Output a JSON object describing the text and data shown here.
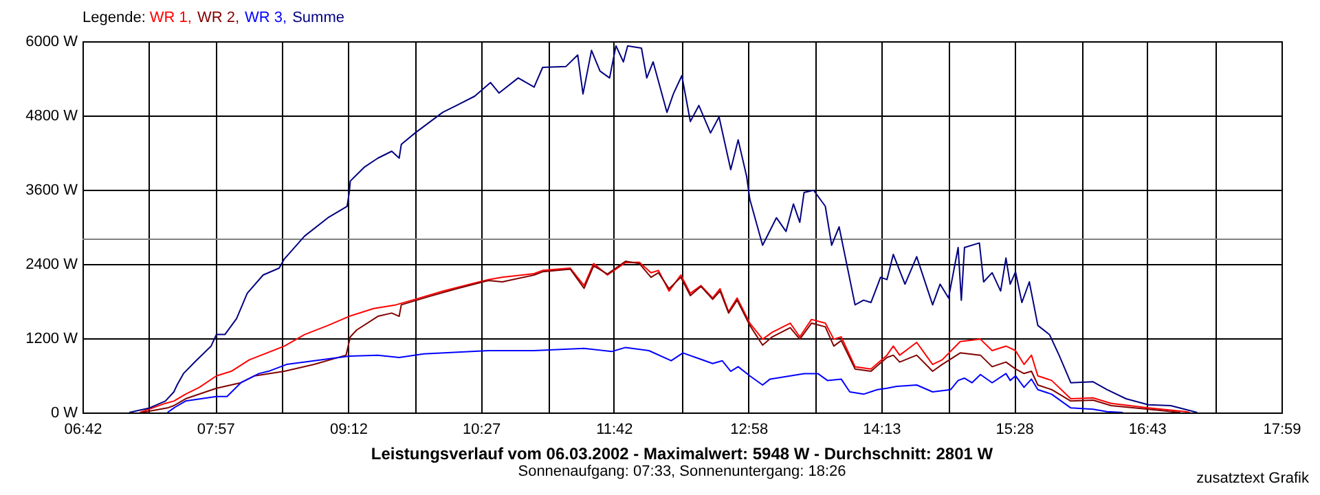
{
  "chart_data": {
    "type": "line",
    "title": "Leistungsverlauf vom 06.03.2002 - Maximalwert: 5948 W - Durchschnitt: 2801 W",
    "subtitle": "Sonnenaufgang: 07:33, Sonnenuntergang: 18:26",
    "legend_title": "Legende:",
    "annotations": [
      "zusatztext Grafik"
    ],
    "xlim": [
      6.7,
      17.983
    ],
    "xticks": [
      {
        "value": 6.7,
        "label": "06:42"
      },
      {
        "value": 7.327,
        "label": null
      },
      {
        "value": 7.95,
        "label": "07:57"
      },
      {
        "value": 8.581,
        "label": null
      },
      {
        "value": 9.2,
        "label": "09:12"
      },
      {
        "value": 9.834,
        "label": null
      },
      {
        "value": 10.45,
        "label": "10:27"
      },
      {
        "value": 11.088,
        "label": null
      },
      {
        "value": 11.7,
        "label": "11:42"
      },
      {
        "value": 12.342,
        "label": null
      },
      {
        "value": 12.967,
        "label": "12:58"
      },
      {
        "value": 13.595,
        "label": null
      },
      {
        "value": 14.217,
        "label": "14:13"
      },
      {
        "value": 14.849,
        "label": null
      },
      {
        "value": 15.467,
        "label": "15:28"
      },
      {
        "value": 16.103,
        "label": null
      },
      {
        "value": 16.717,
        "label": "16:43"
      },
      {
        "value": 17.357,
        "label": null
      },
      {
        "value": 17.983,
        "label": "17:59"
      }
    ],
    "ylim": [
      0,
      6000
    ],
    "yticks": [
      {
        "value": 0,
        "label": "0 W"
      },
      {
        "value": 1200,
        "label": "1200 W"
      },
      {
        "value": 2400,
        "label": "2400 W"
      },
      {
        "value": 3600,
        "label": "3600 W"
      },
      {
        "value": 4800,
        "label": "4800 W"
      },
      {
        "value": 6000,
        "label": "6000 W"
      }
    ],
    "grid": true,
    "legend": "top left",
    "ref_lines": [
      {
        "axis": "y",
        "value": 2801,
        "color": "#808080"
      }
    ],
    "series": [
      {
        "name": "WR 1,",
        "color": "#ff0000",
        "x": [
          7.24,
          7.48,
          7.56,
          7.67,
          7.8,
          7.96,
          8.1,
          8.27,
          8.6,
          8.79,
          9.01,
          9.21,
          9.44,
          9.65,
          9.83,
          10.09,
          10.35,
          10.52,
          10.65,
          10.95,
          11.03,
          11.29,
          11.42,
          11.51,
          11.64,
          11.81,
          11.94,
          12.05,
          12.12,
          12.22,
          12.33,
          12.42,
          12.52,
          12.63,
          12.7,
          12.78,
          12.86,
          12.98,
          13.1,
          13.19,
          13.36,
          13.45,
          13.56,
          13.69,
          13.77,
          13.84,
          13.97,
          14.12,
          14.27,
          14.33,
          14.39,
          14.55,
          14.7,
          14.79,
          14.96,
          15.15,
          15.26,
          15.39,
          15.48,
          15.56,
          15.63,
          15.69,
          15.82,
          16.0,
          16.21,
          16.38,
          16.73,
          17.08,
          17.12
        ],
        "values": [
          0,
          148,
          185,
          296,
          407,
          592,
          666,
          851,
          1073,
          1260,
          1407,
          1555,
          1681,
          1740,
          1829,
          1962,
          2074,
          2148,
          2185,
          2244,
          2296,
          2333,
          2051,
          2407,
          2222,
          2422,
          2429,
          2259,
          2296,
          1962,
          2222,
          1926,
          2051,
          1851,
          2000,
          1629,
          1851,
          1444,
          1185,
          1296,
          1444,
          1222,
          1504,
          1444,
          1185,
          1222,
          740,
          704,
          926,
          1073,
          926,
          1133,
          777,
          851,
          1148,
          1185,
          1000,
          1073,
          1000,
          777,
          926,
          592,
          518,
          222,
          237,
          148,
          74,
          15,
          0
        ]
      },
      {
        "name": "WR 2,",
        "color": "#800000",
        "x": [
          7.26,
          7.5,
          7.56,
          7.67,
          7.96,
          8.19,
          8.32,
          8.6,
          8.88,
          9.18,
          9.22,
          9.28,
          9.48,
          9.61,
          9.68,
          9.7,
          9.96,
          10.22,
          10.52,
          10.65,
          10.95,
          11.03,
          11.29,
          11.42,
          11.51,
          11.64,
          11.81,
          11.94,
          12.05,
          12.12,
          12.22,
          12.33,
          12.42,
          12.52,
          12.63,
          12.7,
          12.78,
          12.86,
          12.98,
          13.1,
          13.19,
          13.36,
          13.45,
          13.56,
          13.69,
          13.77,
          13.84,
          13.97,
          14.12,
          14.27,
          14.33,
          14.39,
          14.55,
          14.7,
          14.79,
          14.96,
          15.15,
          15.26,
          15.39,
          15.48,
          15.56,
          15.63,
          15.69,
          15.82,
          16.0,
          16.21,
          16.38,
          16.73,
          17.03
        ],
        "values": [
          0,
          74,
          111,
          222,
          392,
          481,
          592,
          666,
          777,
          926,
          1222,
          1333,
          1555,
          1607,
          1555,
          1740,
          1874,
          2000,
          2133,
          2111,
          2222,
          2274,
          2318,
          2007,
          2370,
          2237,
          2444,
          2407,
          2185,
          2259,
          2000,
          2185,
          1889,
          2037,
          1829,
          1963,
          1607,
          1815,
          1407,
          1089,
          1222,
          1370,
          1185,
          1444,
          1385,
          1074,
          1163,
          704,
          667,
          889,
          926,
          815,
          926,
          667,
          777,
          963,
          926,
          740,
          815,
          704,
          630,
          667,
          444,
          370,
          185,
          200,
          111,
          52,
          0
        ]
      },
      {
        "name": "WR 3,",
        "color": "#0000ff",
        "x": [
          7.5,
          7.56,
          7.67,
          7.96,
          8.06,
          8.19,
          8.36,
          8.45,
          8.62,
          8.88,
          9.21,
          9.48,
          9.68,
          9.91,
          10.52,
          10.95,
          11.42,
          11.68,
          11.81,
          12.03,
          12.24,
          12.35,
          12.63,
          12.72,
          12.8,
          12.87,
          12.98,
          13.1,
          13.17,
          13.36,
          13.49,
          13.62,
          13.71,
          13.84,
          13.92,
          14.05,
          14.18,
          14.27,
          14.36,
          14.55,
          14.7,
          14.87,
          14.94,
          15.0,
          15.07,
          15.15,
          15.26,
          15.39,
          15.43,
          15.48,
          15.56,
          15.63,
          15.69,
          15.82,
          16.0,
          16.21,
          16.34,
          16.49
        ],
        "values": [
          0,
          74,
          185,
          259,
          259,
          481,
          629,
          666,
          777,
          837,
          911,
          926,
          889,
          948,
          1000,
          1000,
          1037,
          985,
          1051,
          1000,
          837,
          963,
          792,
          837,
          666,
          740,
          592,
          444,
          540,
          592,
          629,
          629,
          518,
          540,
          333,
          296,
          370,
          392,
          422,
          444,
          333,
          370,
          518,
          555,
          481,
          614,
          481,
          629,
          518,
          592,
          407,
          540,
          370,
          296,
          74,
          52,
          15,
          0
        ]
      },
      {
        "name": "Summe",
        "color": "#000080",
        "x": [
          7.14,
          7.33,
          7.48,
          7.56,
          7.59,
          7.65,
          7.76,
          7.91,
          7.96,
          8.04,
          8.15,
          8.25,
          8.4,
          8.55,
          8.6,
          8.79,
          9.01,
          9.19,
          9.21,
          9.22,
          9.35,
          9.48,
          9.61,
          9.68,
          9.7,
          9.83,
          10.09,
          10.22,
          10.39,
          10.54,
          10.62,
          10.8,
          10.95,
          11.03,
          11.25,
          11.36,
          11.41,
          11.49,
          11.57,
          11.66,
          11.72,
          11.79,
          11.83,
          11.96,
          12.01,
          12.07,
          12.2,
          12.26,
          12.34,
          12.42,
          12.5,
          12.61,
          12.69,
          12.8,
          12.87,
          12.95,
          12.98,
          13.1,
          13.23,
          13.32,
          13.39,
          13.45,
          13.49,
          13.58,
          13.69,
          13.75,
          13.82,
          13.97,
          14.05,
          14.12,
          14.21,
          14.27,
          14.33,
          14.44,
          14.55,
          14.7,
          14.77,
          14.85,
          14.94,
          14.97,
          15.0,
          15.14,
          15.18,
          15.26,
          15.34,
          15.39,
          15.43,
          15.48,
          15.54,
          15.61,
          15.69,
          15.8,
          15.89,
          16.0,
          16.21,
          16.34,
          16.52,
          16.73,
          16.94,
          17.19
        ],
        "values": [
          0,
          73,
          184,
          333,
          444,
          629,
          822,
          1073,
          1260,
          1260,
          1518,
          1926,
          2222,
          2333,
          2482,
          2851,
          3148,
          3333,
          3555,
          3740,
          3962,
          4111,
          4222,
          4111,
          4333,
          4518,
          4851,
          4962,
          5111,
          5333,
          5163,
          5407,
          5259,
          5578,
          5593,
          5778,
          5148,
          5852,
          5518,
          5407,
          5926,
          5667,
          5926,
          5889,
          5407,
          5667,
          4851,
          5148,
          5444,
          4703,
          4962,
          4518,
          4777,
          3926,
          4407,
          3814,
          3444,
          2703,
          3148,
          2926,
          3370,
          3073,
          3555,
          3592,
          3333,
          2703,
          3000,
          1740,
          1815,
          1778,
          2185,
          2148,
          2555,
          2074,
          2518,
          1740,
          2074,
          1851,
          2666,
          1815,
          2666,
          2740,
          2111,
          2259,
          1963,
          2496,
          2074,
          2274,
          1778,
          2111,
          1407,
          1259,
          926,
          481,
          496,
          370,
          222,
          126,
          111,
          0
        ]
      }
    ]
  }
}
